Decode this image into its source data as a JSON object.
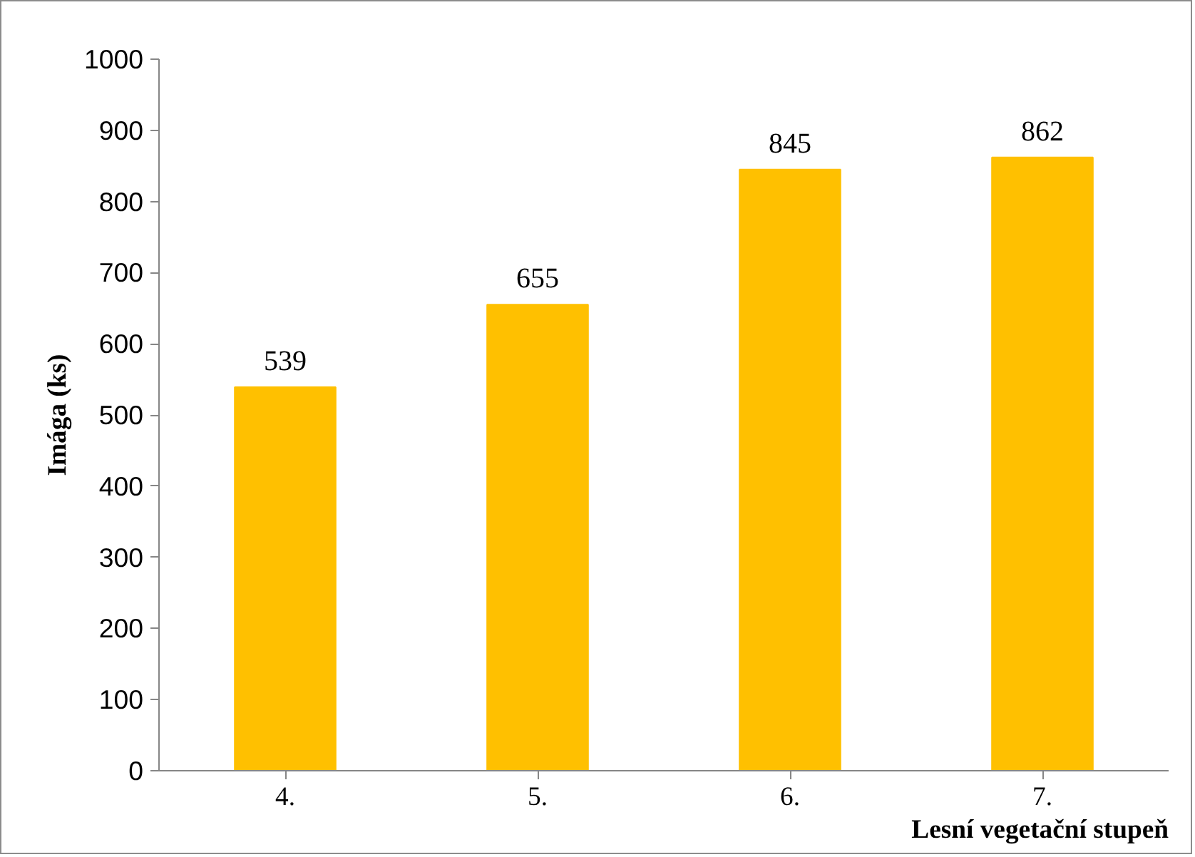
{
  "chart_data": {
    "type": "bar",
    "xlabel": "Lesní vegetační stupeň",
    "ylabel": "Imága (ks)",
    "categories": [
      "4.",
      "5.",
      "6.",
      "7."
    ],
    "values": [
      539,
      655,
      845,
      862
    ],
    "color": "#ffc000",
    "ylim": [
      0,
      1000
    ],
    "yticks": [
      0,
      100,
      200,
      300,
      400,
      500,
      600,
      700,
      800,
      900,
      1000
    ],
    "grid": false,
    "data_labels": true
  }
}
